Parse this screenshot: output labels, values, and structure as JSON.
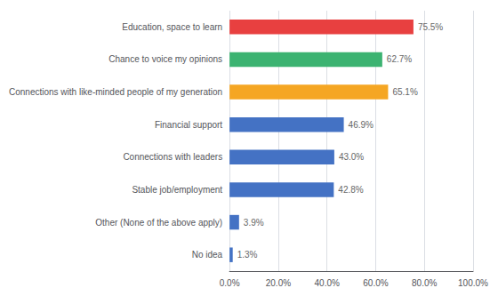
{
  "chart_data": {
    "type": "bar",
    "orientation": "horizontal",
    "categories": [
      "No idea",
      "Other (None of the above apply)",
      "Stable job/employment",
      "Connections with leaders",
      "Financial support",
      "Connections with like-minded people of my generation",
      "Chance to voice my opinions",
      "Education, space to learn"
    ],
    "values": [
      1.3,
      3.9,
      42.8,
      43.0,
      46.9,
      65.1,
      62.7,
      75.5
    ],
    "value_labels": [
      "1.3%",
      "3.9%",
      "42.8%",
      "43.0%",
      "46.9%",
      "65.1%",
      "62.7%",
      "75.5%"
    ],
    "colors": [
      "#4472C4",
      "#4472C4",
      "#4472C4",
      "#4472C4",
      "#4472C4",
      "#F5A623",
      "#3CB371",
      "#E84040"
    ],
    "data_labels": true,
    "xlim": [
      0,
      100
    ],
    "xticks": [
      {
        "value": 0,
        "label": "0.0%"
      },
      {
        "value": 20,
        "label": "20.0%"
      },
      {
        "value": 40,
        "label": "40.0%"
      },
      {
        "value": 60,
        "label": "60.0%"
      },
      {
        "value": 80,
        "label": "80.0%"
      },
      {
        "value": 100,
        "label": "100.0%"
      }
    ],
    "grid": true
  }
}
